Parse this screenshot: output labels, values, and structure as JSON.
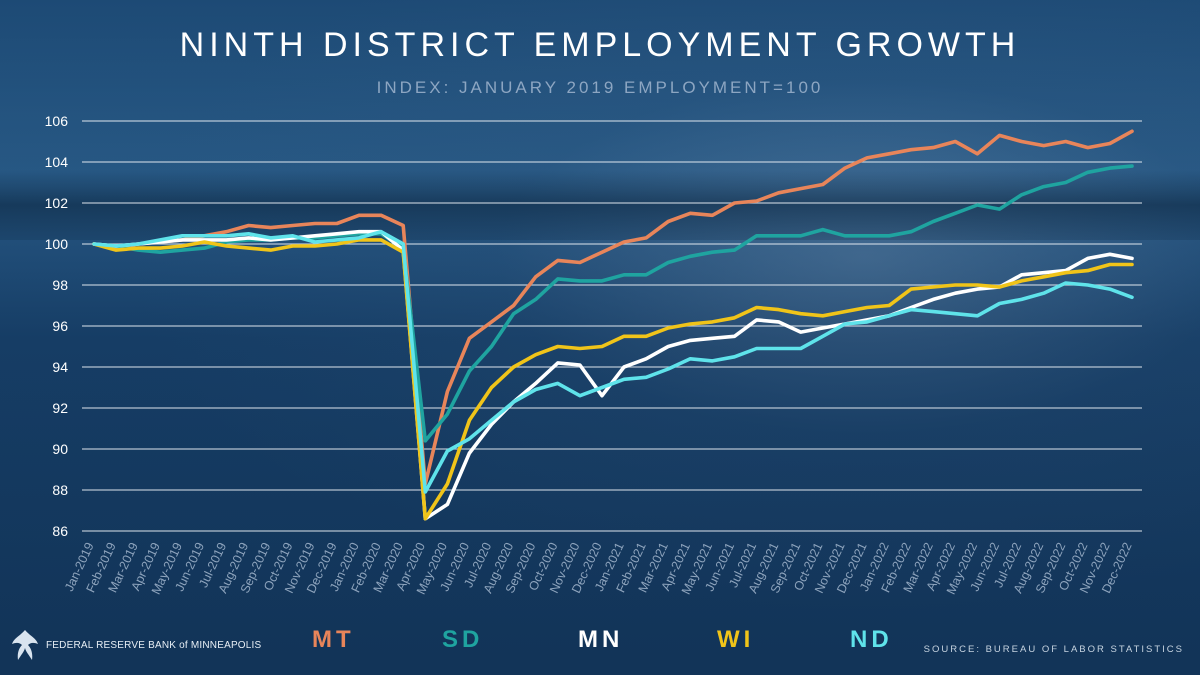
{
  "title": "NINTH DISTRICT EMPLOYMENT GROWTH",
  "subtitle": "INDEX: JANUARY 2019 EMPLOYMENT=100",
  "source": "SOURCE: BUREAU OF LABOR STATISTICS",
  "logo_text": "FEDERAL RESERVE BANK of MINNEAPOLIS",
  "chart_data": {
    "type": "line",
    "title": "NINTH DISTRICT EMPLOYMENT GROWTH",
    "subtitle": "INDEX: JANUARY 2019 EMPLOYMENT=100",
    "xlabel": "",
    "ylabel": "",
    "ylim": [
      86,
      106
    ],
    "yticks": [
      86,
      88,
      90,
      92,
      94,
      96,
      98,
      100,
      102,
      104,
      106
    ],
    "grid": true,
    "legend": "bottom",
    "categories": [
      "Jan-2019",
      "Feb-2019",
      "Mar-2019",
      "Apr-2019",
      "May-2019",
      "Jun-2019",
      "Jul-2019",
      "Aug-2019",
      "Sep-2019",
      "Oct-2019",
      "Nov-2019",
      "Dec-2019",
      "Jan-2020",
      "Feb-2020",
      "Mar-2020",
      "Apr-2020",
      "May-2020",
      "Jun-2020",
      "Jul-2020",
      "Aug-2020",
      "Sep-2020",
      "Oct-2020",
      "Nov-2020",
      "Dec-2020",
      "Jan-2021",
      "Feb-2021",
      "Mar-2021",
      "Apr-2021",
      "May-2021",
      "Jun-2021",
      "Jul-2021",
      "Aug-2021",
      "Sep-2021",
      "Oct-2021",
      "Nov-2021",
      "Dec-2021",
      "Jan-2022",
      "Feb-2022",
      "Mar-2022",
      "Apr-2022",
      "May-2022",
      "Jun-2022",
      "Jul-2022",
      "Aug-2022",
      "Sep-2022",
      "Oct-2022",
      "Nov-2022",
      "Dec-2022"
    ],
    "series": [
      {
        "name": "MT",
        "color": "#e8855a",
        "values": [
          100,
          99.8,
          100,
          100.1,
          100.2,
          100.4,
          100.6,
          100.9,
          100.8,
          100.9,
          101.0,
          101.0,
          101.4,
          101.4,
          100.9,
          88.3,
          92.8,
          95.4,
          96.2,
          97.0,
          98.4,
          99.2,
          99.1,
          99.6,
          100.1,
          100.3,
          101.1,
          101.5,
          101.4,
          102.0,
          102.1,
          102.5,
          102.7,
          102.9,
          103.7,
          104.2,
          104.4,
          104.6,
          104.7,
          105.0,
          104.4,
          105.3,
          105.0,
          104.8,
          105.0,
          104.7,
          104.9,
          105.5
        ]
      },
      {
        "name": "SD",
        "color": "#1fa4a0",
        "values": [
          100,
          99.9,
          99.7,
          99.6,
          99.7,
          99.8,
          100.1,
          100.2,
          100.2,
          100.3,
          100.3,
          100.4,
          100.5,
          100.5,
          99.8,
          90.4,
          91.7,
          93.8,
          95.0,
          96.6,
          97.3,
          98.3,
          98.2,
          98.2,
          98.5,
          98.5,
          99.1,
          99.4,
          99.6,
          99.7,
          100.4,
          100.4,
          100.4,
          100.7,
          100.4,
          100.4,
          100.4,
          100.6,
          101.1,
          101.5,
          101.9,
          101.7,
          102.4,
          102.8,
          103.0,
          103.5,
          103.7,
          103.8
        ]
      },
      {
        "name": "MN",
        "color": "#ffffff",
        "values": [
          100,
          99.9,
          100.0,
          100.1,
          100.2,
          100.2,
          100.2,
          100.3,
          100.2,
          100.3,
          100.4,
          100.5,
          100.6,
          100.6,
          99.7,
          86.6,
          87.3,
          89.8,
          91.2,
          92.3,
          93.2,
          94.2,
          94.1,
          92.6,
          94.0,
          94.4,
          95.0,
          95.3,
          95.4,
          95.5,
          96.3,
          96.2,
          95.7,
          95.9,
          96.1,
          96.3,
          96.5,
          96.9,
          97.3,
          97.6,
          97.8,
          97.9,
          98.5,
          98.6,
          98.7,
          99.3,
          99.5,
          99.3
        ]
      },
      {
        "name": "WI",
        "color": "#f0c419",
        "values": [
          100,
          99.7,
          99.8,
          99.8,
          99.9,
          100.1,
          99.9,
          99.8,
          99.7,
          99.9,
          99.9,
          100.0,
          100.2,
          100.2,
          99.6,
          86.6,
          88.3,
          91.4,
          93.0,
          94.0,
          94.6,
          95.0,
          94.9,
          95.0,
          95.5,
          95.5,
          95.9,
          96.1,
          96.2,
          96.4,
          96.9,
          96.8,
          96.6,
          96.5,
          96.7,
          96.9,
          97.0,
          97.8,
          97.9,
          98.0,
          98.0,
          97.9,
          98.2,
          98.4,
          98.6,
          98.7,
          99.0,
          99.0
        ]
      },
      {
        "name": "ND",
        "color": "#5fe3ea",
        "values": [
          100,
          99.9,
          100.0,
          100.2,
          100.4,
          100.4,
          100.4,
          100.5,
          100.3,
          100.4,
          100.1,
          100.2,
          100.3,
          100.6,
          100.0,
          87.9,
          89.9,
          90.5,
          91.4,
          92.3,
          92.9,
          93.2,
          92.6,
          93.0,
          93.4,
          93.5,
          93.9,
          94.4,
          94.3,
          94.5,
          94.9,
          94.9,
          94.9,
          95.5,
          96.1,
          96.2,
          96.5,
          96.8,
          96.7,
          96.6,
          96.5,
          97.1,
          97.3,
          97.6,
          98.1,
          98.0,
          97.8,
          97.4
        ]
      }
    ]
  }
}
